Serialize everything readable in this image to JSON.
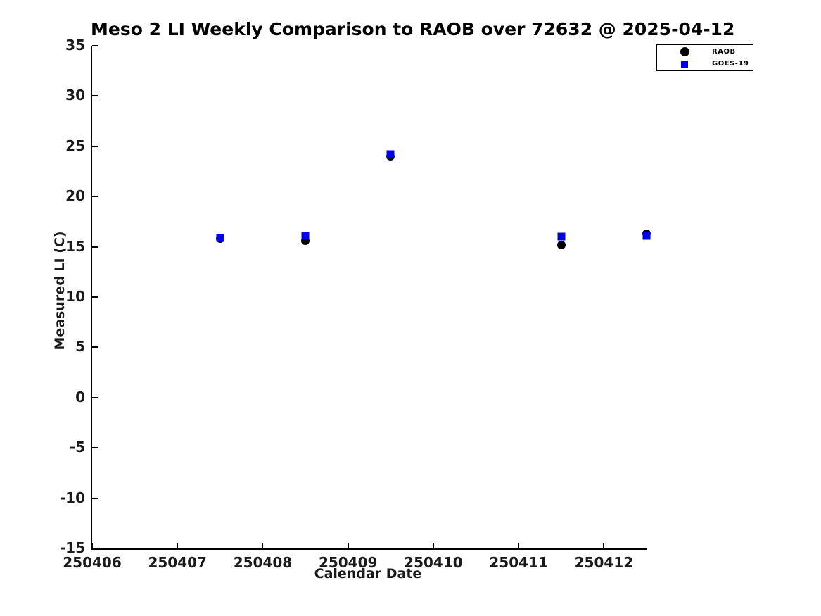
{
  "page": {
    "background": "#ffffff",
    "text_color": "#000000"
  },
  "chart_data": {
    "type": "scatter",
    "title": "Meso 2 LI Weekly Comparison to RAOB over 72632 @ 2025-04-12",
    "xlabel": "Calendar Date",
    "ylabel": "Measured LI (C)",
    "xlim": [
      250406,
      250412.5
    ],
    "ylim": [
      -15,
      35
    ],
    "x_ticks": [
      250406,
      250407,
      250408,
      250409,
      250410,
      250411,
      250412
    ],
    "y_ticks": [
      35,
      30,
      25,
      20,
      15,
      10,
      5,
      0,
      -5,
      -10,
      -15
    ],
    "grid": false,
    "axis_color": "#000000",
    "legend_position": "top-right-outside",
    "series": [
      {
        "name": "RAOB",
        "marker": "circle",
        "color": "#000000",
        "points": [
          {
            "x": 250407.5,
            "y": 15.8
          },
          {
            "x": 250408.5,
            "y": 15.6
          },
          {
            "x": 250409.5,
            "y": 24.0
          },
          {
            "x": 250411.5,
            "y": 15.2
          },
          {
            "x": 250412.5,
            "y": 16.3
          }
        ]
      },
      {
        "name": "GOES-19",
        "marker": "square",
        "color": "#0000ee",
        "points": [
          {
            "x": 250407.5,
            "y": 15.9
          },
          {
            "x": 250408.5,
            "y": 16.1
          },
          {
            "x": 250409.5,
            "y": 24.2
          },
          {
            "x": 250411.5,
            "y": 16.0
          },
          {
            "x": 250412.5,
            "y": 16.1
          }
        ]
      }
    ]
  }
}
